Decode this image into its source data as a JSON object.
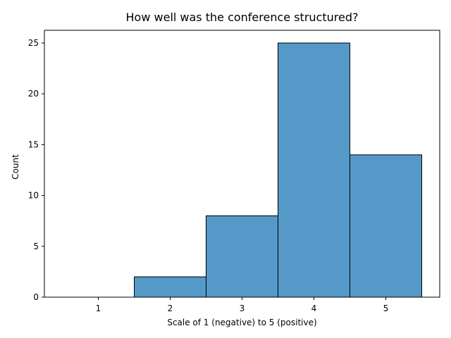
{
  "chart_data": {
    "type": "bar",
    "title": "How well was the conference structured?",
    "xlabel": "Scale of 1 (negative) to 5 (positive)",
    "ylabel": "Count",
    "categories": [
      "1",
      "2",
      "3",
      "4",
      "5"
    ],
    "values": [
      0,
      2,
      8,
      25,
      14
    ],
    "xlim": [
      0.25,
      5.75
    ],
    "ylim": [
      0,
      26.25
    ],
    "yticks": [
      0,
      5,
      10,
      15,
      20,
      25
    ],
    "grid": false,
    "legend": "none",
    "bar_color": "#5499c7",
    "edge_color": "#000000"
  }
}
